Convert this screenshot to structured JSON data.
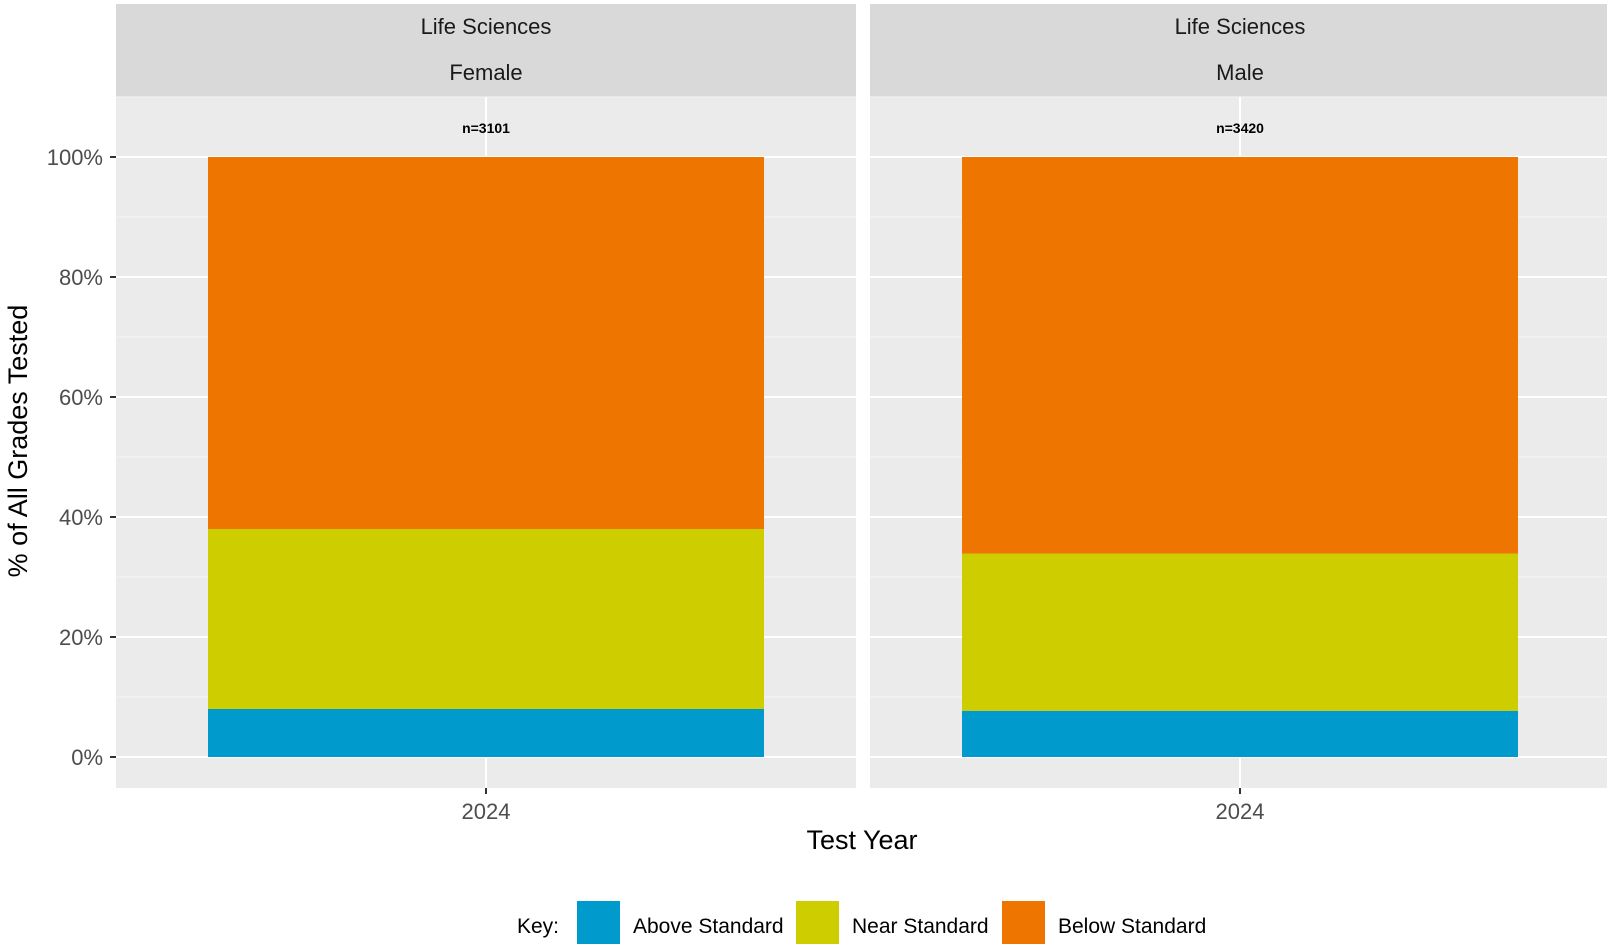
{
  "chart_data": {
    "type": "bar",
    "stacked": true,
    "xlabel": "Test Year",
    "ylabel": "% of All Grades Tested",
    "ylim": [
      0,
      100
    ],
    "y_ticks": [
      "0%",
      "20%",
      "40%",
      "60%",
      "80%",
      "100%"
    ],
    "y_tick_values": [
      0,
      20,
      40,
      60,
      80,
      100
    ],
    "grid": true,
    "legend": {
      "title": "Key:",
      "position": "bottom",
      "items": [
        {
          "label": "Above Standard",
          "color": "#009ACD"
        },
        {
          "label": "Near Standard",
          "color": "#CDCD00"
        },
        {
          "label": "Below Standard",
          "color": "#EE7600"
        }
      ]
    },
    "panels": [
      {
        "strip": [
          "Life Sciences",
          "Female"
        ],
        "n_label": "n=3101",
        "categories": [
          "2024"
        ],
        "series": [
          {
            "name": "Above Standard",
            "values": [
              8
            ]
          },
          {
            "name": "Near Standard",
            "values": [
              30
            ]
          },
          {
            "name": "Below Standard",
            "values": [
              62
            ]
          }
        ]
      },
      {
        "strip": [
          "Life Sciences",
          "Male"
        ],
        "n_label": "n=3420",
        "categories": [
          "2024"
        ],
        "series": [
          {
            "name": "Above Standard",
            "values": [
              7.7
            ]
          },
          {
            "name": "Near Standard",
            "values": [
              26.2
            ]
          },
          {
            "name": "Below Standard",
            "values": [
              66.1
            ]
          }
        ]
      }
    ]
  }
}
